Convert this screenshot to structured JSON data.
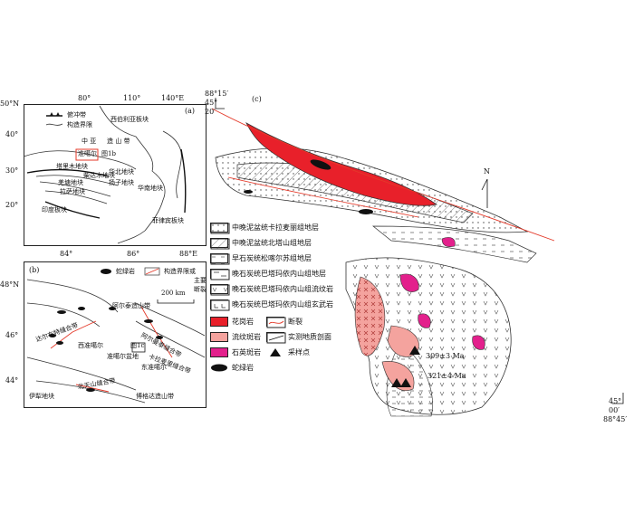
{
  "panel_a": {
    "tag": "(a)",
    "lat_labels": [
      "50°N",
      "40°",
      "30°",
      "20°"
    ],
    "lon_labels": [
      "80°",
      "110°",
      "140°E"
    ],
    "legend": [
      "俯冲带",
      "构造界限"
    ],
    "box_label": "图1b",
    "places": {
      "siberia": "西伯利亚板块",
      "central_asia_1": "中 亚",
      "central_asia_2": "造 山 带",
      "junggar": "准噶尔",
      "tarim": "塔里木地块",
      "north_china": "华北地块",
      "qaidam": "柴达木地块",
      "yangtze": "扬子地块",
      "qiangtang": "羌塘地块",
      "lhasa": "拉萨地块",
      "south_china": "华南地块",
      "india": "印度板块",
      "philippine": "菲律宾板块"
    }
  },
  "panel_b": {
    "tag": "(b)",
    "lat_labels": [
      "48°N",
      "46°",
      "44°"
    ],
    "lon_labels": [
      "84°",
      "86°",
      "88°E"
    ],
    "legend": [
      "蛇绿岩",
      "构造界限或",
      "主要断裂"
    ],
    "scale": "200 km",
    "box_label": "图1c",
    "places": {
      "altai": "阿尔泰造山带",
      "junggar_basin": "准噶尔盆地",
      "w_junggar": "西准噶尔",
      "e_junggar": "东准噶尔",
      "yili": "伊犁地块",
      "bogda": "博格达造山带",
      "tianshan": "北天山缝合带",
      "darbut": "达尔布特缝合带",
      "kalamaili": "卡拉麦里缝合带",
      "armantai": "阿尔曼泰缝合带"
    }
  },
  "panel_c": {
    "tag": "(c)",
    "coord_tl_1": "88°15′",
    "coord_tl_2": "45°",
    "coord_tl_3": "20′",
    "coord_br_1": "45°",
    "coord_br_2": "00′",
    "coord_br_3": "88°45′",
    "north": "N",
    "ages": [
      "309±3 Ma",
      "321±4 Ma"
    ]
  },
  "legend_c": {
    "strata": [
      "中晚泥盆统卡拉麦丽组地层",
      "中晚泥盆统北塔山组地层",
      "早石炭统松喀尔苏组地层",
      "晚石炭统巴塔玛依内山组地层",
      "晚石炭统巴塔玛依内山组流纹岩",
      "晚石炭统巴塔玛依内山组玄武岩"
    ],
    "rocks_left": [
      "花岗岩",
      "流纹斑岩",
      "石英斑岩",
      "蛇绿岩"
    ],
    "rocks_right": [
      "断裂",
      "实测地质剖面",
      "采样点"
    ]
  },
  "colors": {
    "granite": "#e8202a",
    "rhyolite_porphyry": "#f4a39e",
    "quartz_porphyry": "#e3208c",
    "ophiolite": "#111111",
    "fault": "#e43a2a"
  }
}
